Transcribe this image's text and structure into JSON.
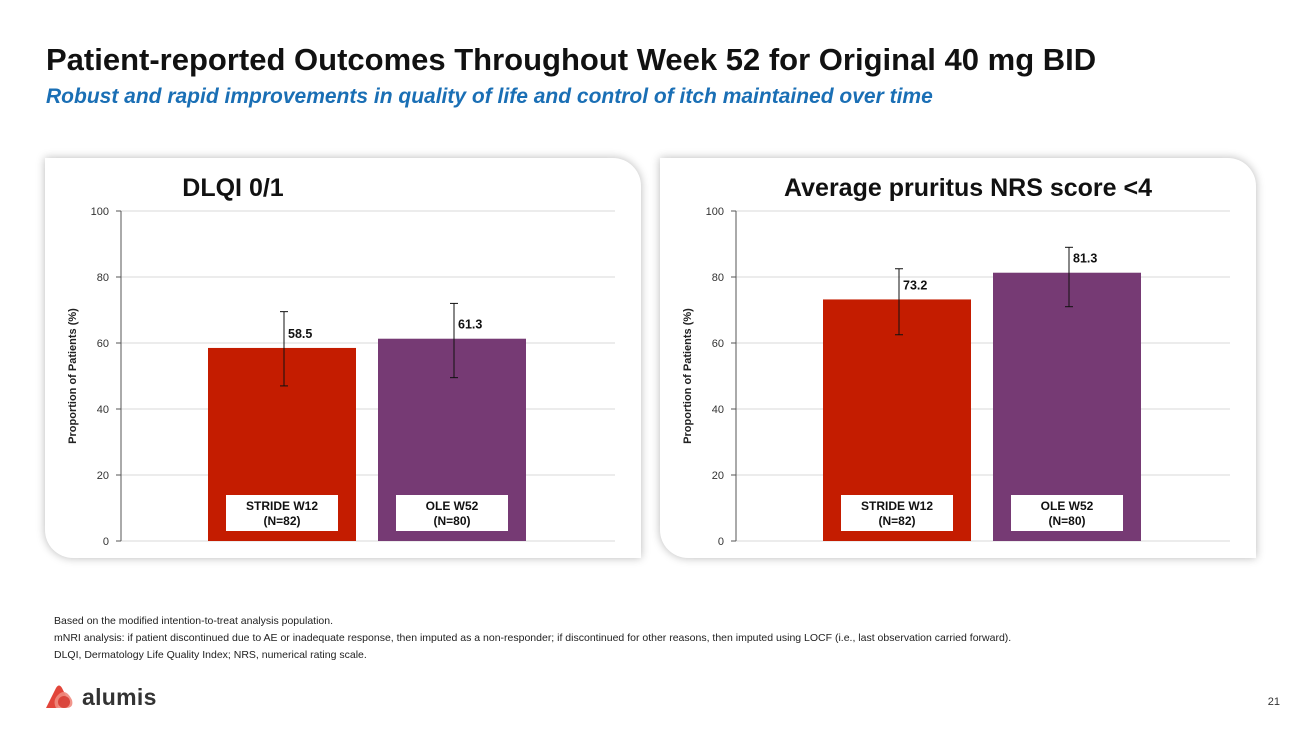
{
  "header": {
    "title": "Patient-reported Outcomes Throughout Week 52 for Original 40 mg BID",
    "subtitle": "Robust and rapid improvements in quality of life and control of itch maintained over time"
  },
  "colors": {
    "stride": "#c41c00",
    "ole": "#763a74",
    "subtitle": "#1a6fb5"
  },
  "chart_data": [
    {
      "type": "bar",
      "title": "DLQI  0/1",
      "ylabel": "Proportion of Patients (%)",
      "ylim": [
        0,
        100
      ],
      "yticks": [
        "0",
        "20",
        "40",
        "60",
        "80",
        "100"
      ],
      "grid": true,
      "categories": [
        "STRIDE W12",
        "OLE W52"
      ],
      "category_n": [
        "(N=82)",
        "(N=80)"
      ],
      "values": [
        58.5,
        61.3
      ],
      "value_labels": [
        "58.5",
        "61.3"
      ],
      "error_low": [
        47.0,
        49.5
      ],
      "error_high": [
        69.5,
        72.0
      ]
    },
    {
      "type": "bar",
      "title": "Average pruritus NRS score <4",
      "ylabel": "Proportion of Patients (%)",
      "ylim": [
        0,
        100
      ],
      "yticks": [
        "0",
        "20",
        "40",
        "60",
        "80",
        "100"
      ],
      "grid": true,
      "categories": [
        "STRIDE W12",
        "OLE W52"
      ],
      "category_n": [
        "(N=82)",
        "(N=80)"
      ],
      "values": [
        73.2,
        81.3
      ],
      "value_labels": [
        "73.2",
        "81.3"
      ],
      "error_low": [
        62.5,
        71.0
      ],
      "error_high": [
        82.5,
        89.0
      ]
    }
  ],
  "footnotes": [
    "Based on the modified intention-to-treat analysis population.",
    "mNRI analysis: if patient discontinued due to AE or inadequate response, then imputed as a non-responder; if discontinued for other reasons, then imputed using LOCF (i.e., last observation carried forward).",
    "DLQI, Dermatology Life Quality Index; NRS, numerical rating scale."
  ],
  "footer": {
    "brand": "alumis",
    "page_number": "21"
  }
}
